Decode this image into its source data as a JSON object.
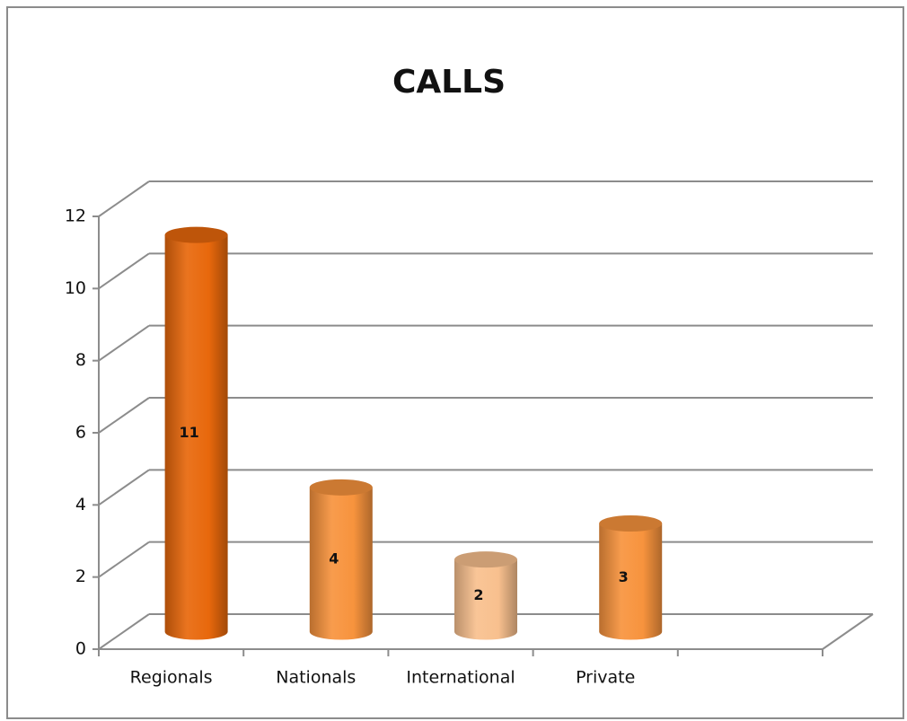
{
  "chart_data": {
    "type": "bar3d-cylinder",
    "title": "CALLS",
    "categories": [
      "Regionals",
      "Nationals",
      "International",
      "Private",
      null
    ],
    "values": [
      11,
      4,
      2,
      3,
      null
    ],
    "colors": [
      "#e8680c",
      "#f7933d",
      "#f8c08e",
      "#f7933d",
      null
    ],
    "ylim": [
      0,
      12
    ],
    "yticks": [
      0,
      2,
      4,
      6,
      8,
      10,
      12
    ],
    "grid": true
  }
}
